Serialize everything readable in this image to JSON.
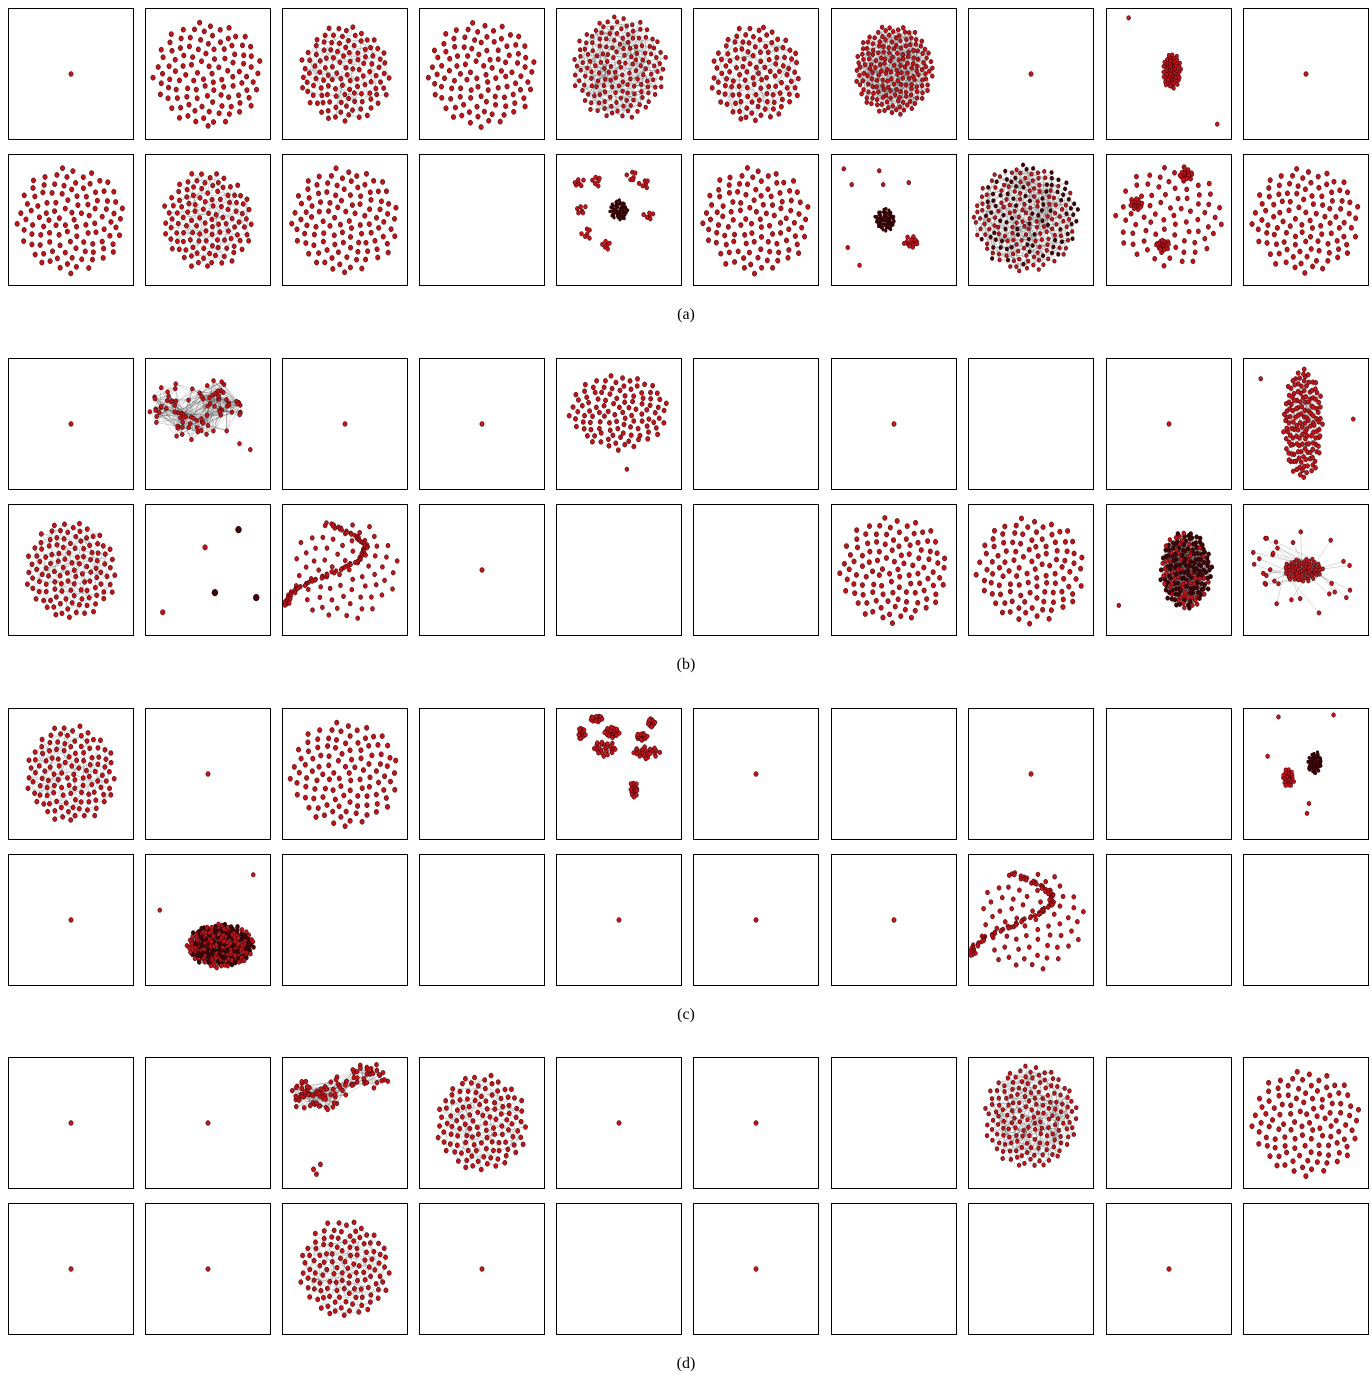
{
  "figure": {
    "panels": [
      {
        "caption": "(a)",
        "rows": [
          [
            "dot",
            "round-cloud",
            "round-cloud-edges",
            "round-cloud",
            "dense-web",
            "round-cloud-edges",
            "dense-blob",
            "dot",
            "oval-outliers",
            "dot"
          ],
          [
            "round-cloud",
            "round-cloud-edges",
            "round-cloud",
            "empty",
            "clusters",
            "round-cloud",
            "clusters-edges",
            "big-mesh",
            "cloud-clumps",
            "round-cloud"
          ]
        ]
      },
      {
        "caption": "(b)",
        "rows": [
          [
            "dot",
            "tangled",
            "dot",
            "dot",
            "oval-cloud",
            "empty",
            "dot",
            "empty",
            "dot",
            "tall-oval"
          ],
          [
            "round-cloud-edges",
            "scattered-dots",
            "spiral",
            "dot",
            "empty",
            "empty",
            "round-cloud",
            "round-cloud",
            "black-oval",
            "hub-spokes"
          ]
        ]
      },
      {
        "caption": "(c)",
        "rows": [
          [
            "round-cloud-edges",
            "dot",
            "round-cloud",
            "empty",
            "fragments",
            "dot",
            "empty",
            "dot",
            "empty",
            "two-blobs"
          ],
          [
            "dot",
            "flat-blob",
            "empty",
            "empty",
            "dot",
            "dot",
            "dot",
            "spiral",
            "empty",
            "empty"
          ]
        ]
      },
      {
        "caption": "(d)",
        "rows": [
          [
            "dot",
            "dot",
            "branchy",
            "round-cloud-edges",
            "dot",
            "dot",
            "empty",
            "dense-web",
            "empty",
            "round-cloud"
          ],
          [
            "dot",
            "dot",
            "round-cloud-edges",
            "dot",
            "empty",
            "dot",
            "empty",
            "empty",
            "dot",
            "empty"
          ]
        ]
      }
    ]
  },
  "colors": {
    "node": "#c0141b",
    "node_dark": "#3a0508",
    "edge": "#555555",
    "frame": "#000000"
  }
}
